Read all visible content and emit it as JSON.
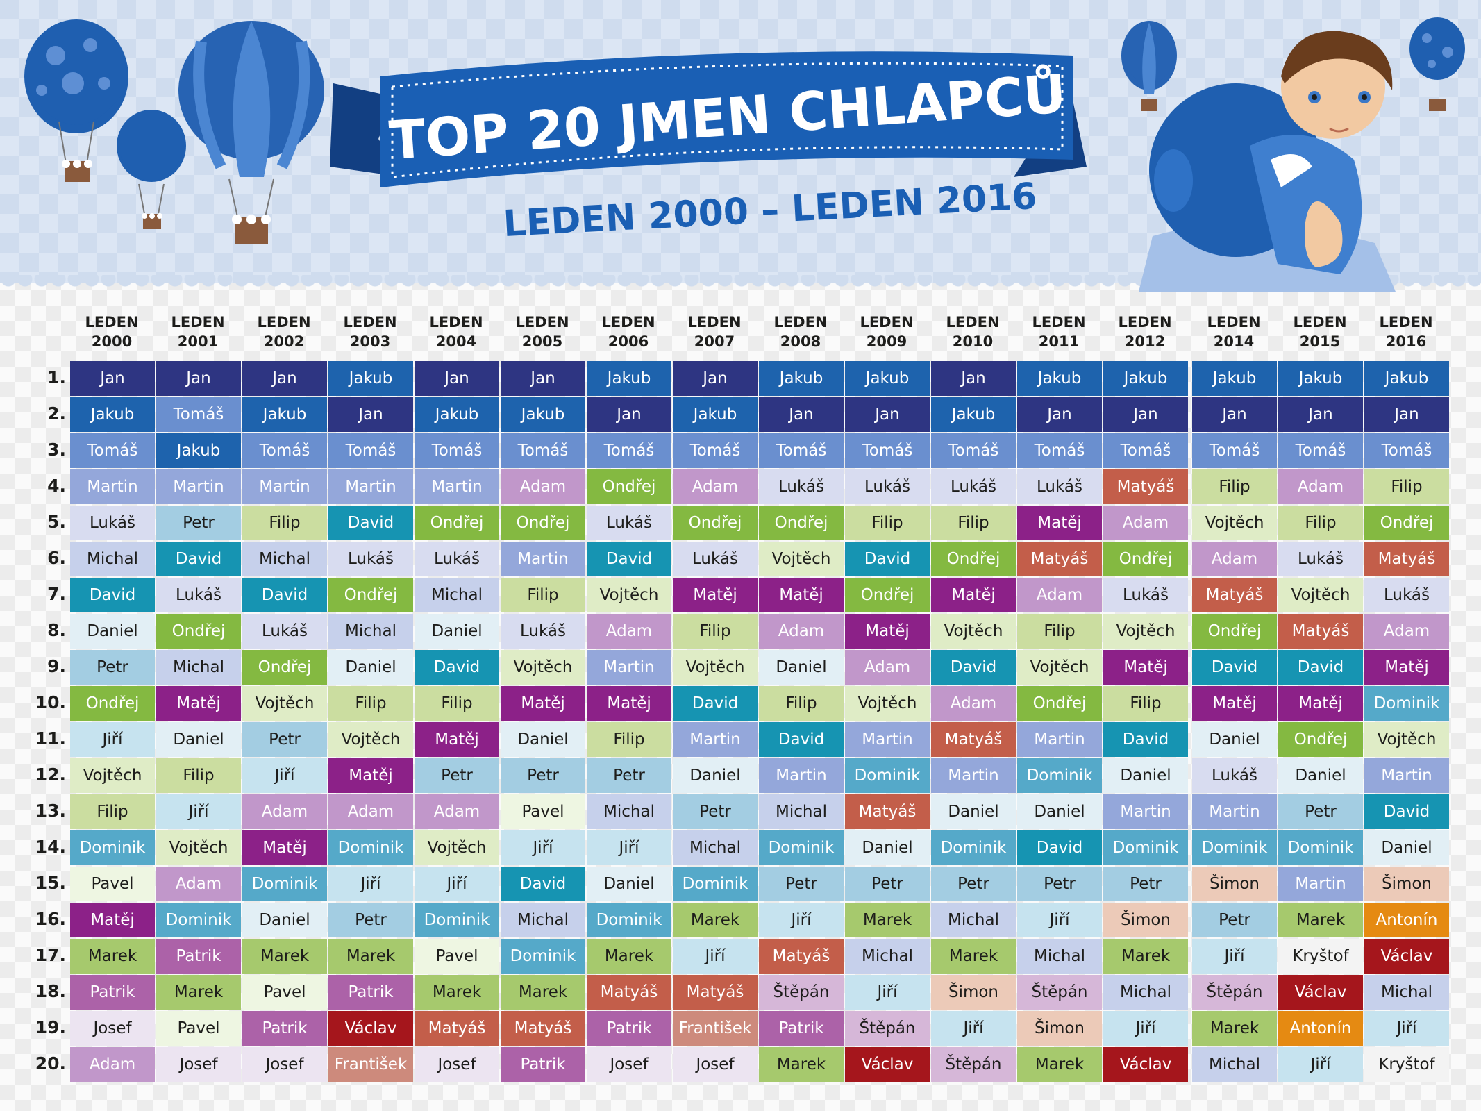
{
  "header": {
    "title": "TOP 20 JMEN CHLAPCŮ",
    "subtitle": "LEDEN 2000 – LEDEN 2016"
  },
  "columns": [
    {
      "line1": "LEDEN",
      "line2": "2000"
    },
    {
      "line1": "LEDEN",
      "line2": "2001"
    },
    {
      "line1": "LEDEN",
      "line2": "2002"
    },
    {
      "line1": "LEDEN",
      "line2": "2003"
    },
    {
      "line1": "LEDEN",
      "line2": "2004"
    },
    {
      "line1": "LEDEN",
      "line2": "2005"
    },
    {
      "line1": "LEDEN",
      "line2": "2006"
    },
    {
      "line1": "LEDEN",
      "line2": "2007"
    },
    {
      "line1": "LEDEN",
      "line2": "2008"
    },
    {
      "line1": "LEDEN",
      "line2": "2009"
    },
    {
      "line1": "LEDEN",
      "line2": "2010"
    },
    {
      "line1": "LEDEN",
      "line2": "2011"
    },
    {
      "line1": "LEDEN",
      "line2": "2012"
    },
    {
      "line1": "LEDEN",
      "line2": "2014"
    },
    {
      "line1": "LEDEN",
      "line2": "2015"
    },
    {
      "line1": "LEDEN",
      "line2": "2016"
    }
  ],
  "ranks": [
    "1.",
    "2.",
    "3.",
    "4.",
    "5.",
    "6.",
    "7.",
    "8.",
    "9.",
    "10.",
    "11.",
    "12.",
    "13.",
    "14.",
    "15.",
    "16.",
    "17.",
    "18.",
    "19.",
    "20."
  ],
  "grid": [
    [
      "Jan",
      "Jan",
      "Jan",
      "Jakub",
      "Jan",
      "Jan",
      "Jakub",
      "Jan",
      "Jakub",
      "Jakub",
      "Jan",
      "Jakub",
      "Jakub",
      "Jakub",
      "Jakub",
      "Jakub"
    ],
    [
      "Jakub",
      "Tomáš",
      "Jakub",
      "Jan",
      "Jakub",
      "Jakub",
      "Jan",
      "Jakub",
      "Jan",
      "Jan",
      "Jakub",
      "Jan",
      "Jan",
      "Jan",
      "Jan",
      "Jan"
    ],
    [
      "Tomáš",
      "Jakub",
      "Tomáš",
      "Tomáš",
      "Tomáš",
      "Tomáš",
      "Tomáš",
      "Tomáš",
      "Tomáš",
      "Tomáš",
      "Tomáš",
      "Tomáš",
      "Tomáš",
      "Tomáš",
      "Tomáš",
      "Tomáš"
    ],
    [
      "Martin",
      "Martin",
      "Martin",
      "Martin",
      "Martin",
      "Adam",
      "Ondřej",
      "Adam",
      "Lukáš",
      "Lukáš",
      "Lukáš",
      "Lukáš",
      "Matyáš",
      "Filip",
      "Adam",
      "Filip"
    ],
    [
      "Lukáš",
      "Petr",
      "Filip",
      "David",
      "Ondřej",
      "Ondřej",
      "Lukáš",
      "Ondřej",
      "Ondřej",
      "Filip",
      "Filip",
      "Matěj",
      "Adam",
      "Vojtěch",
      "Filip",
      "Ondřej"
    ],
    [
      "Michal",
      "David",
      "Michal",
      "Lukáš",
      "Lukáš",
      "Martin",
      "David",
      "Lukáš",
      "Vojtěch",
      "David",
      "Ondřej",
      "Matyáš",
      "Ondřej",
      "Adam",
      "Lukáš",
      "Matyáš"
    ],
    [
      "David",
      "Lukáš",
      "David",
      "Ondřej",
      "Michal",
      "Filip",
      "Vojtěch",
      "Matěj",
      "Matěj",
      "Ondřej",
      "Matěj",
      "Adam",
      "Lukáš",
      "Matyáš",
      "Vojtěch",
      "Lukáš"
    ],
    [
      "Daniel",
      "Ondřej",
      "Lukáš",
      "Michal",
      "Daniel",
      "Lukáš",
      "Adam",
      "Filip",
      "Adam",
      "Matěj",
      "Vojtěch",
      "Filip",
      "Vojtěch",
      "Ondřej",
      "Matyáš",
      "Adam"
    ],
    [
      "Petr",
      "Michal",
      "Ondřej",
      "Daniel",
      "David",
      "Vojtěch",
      "Martin",
      "Vojtěch",
      "Daniel",
      "Adam",
      "David",
      "Vojtěch",
      "Matěj",
      "David",
      "David",
      "Matěj"
    ],
    [
      "Ondřej",
      "Matěj",
      "Vojtěch",
      "Filip",
      "Filip",
      "Matěj",
      "Matěj",
      "David",
      "Filip",
      "Vojtěch",
      "Adam",
      "Ondřej",
      "Filip",
      "Matěj",
      "Matěj",
      "Dominik"
    ],
    [
      "Jiří",
      "Daniel",
      "Petr",
      "Vojtěch",
      "Matěj",
      "Daniel",
      "Filip",
      "Martin",
      "David",
      "Martin",
      "Matyáš",
      "Martin",
      "David",
      "Daniel",
      "Ondřej",
      "Vojtěch"
    ],
    [
      "Vojtěch",
      "Filip",
      "Jiří",
      "Matěj",
      "Petr",
      "Petr",
      "Petr",
      "Daniel",
      "Martin",
      "Dominik",
      "Martin",
      "Dominik",
      "Daniel",
      "Lukáš",
      "Daniel",
      "Martin"
    ],
    [
      "Filip",
      "Jiří",
      "Adam",
      "Adam",
      "Adam",
      "Pavel",
      "Michal",
      "Petr",
      "Michal",
      "Matyáš",
      "Daniel",
      "Daniel",
      "Martin",
      "Martin",
      "Petr",
      "David"
    ],
    [
      "Dominik",
      "Vojtěch",
      "Matěj",
      "Dominik",
      "Vojtěch",
      "Jiří",
      "Jiří",
      "Michal",
      "Dominik",
      "Daniel",
      "Dominik",
      "David",
      "Dominik",
      "Dominik",
      "Dominik",
      "Daniel"
    ],
    [
      "Pavel",
      "Adam",
      "Dominik",
      "Jiří",
      "Jiří",
      "David",
      "Daniel",
      "Dominik",
      "Petr",
      "Petr",
      "Petr",
      "Petr",
      "Petr",
      "Šimon",
      "Martin",
      "Šimon"
    ],
    [
      "Matěj",
      "Dominik",
      "Daniel",
      "Petr",
      "Dominik",
      "Michal",
      "Dominik",
      "Marek",
      "Jiří",
      "Marek",
      "Michal",
      "Jiří",
      "Šimon",
      "Petr",
      "Marek",
      "Antonín"
    ],
    [
      "Marek",
      "Patrik",
      "Marek",
      "Marek",
      "Pavel",
      "Dominik",
      "Marek",
      "Jiří",
      "Matyáš",
      "Michal",
      "Marek",
      "Michal",
      "Marek",
      "Jiří",
      "Kryštof",
      "Václav"
    ],
    [
      "Patrik",
      "Marek",
      "Pavel",
      "Patrik",
      "Marek",
      "Marek",
      "Matyáš",
      "Matyáš",
      "Štěpán",
      "Jiří",
      "Šimon",
      "Štěpán",
      "Michal",
      "Štěpán",
      "Václav",
      "Michal"
    ],
    [
      "Josef",
      "Pavel",
      "Patrik",
      "Václav",
      "Matyáš",
      "Matyáš",
      "Patrik",
      "František",
      "Patrik",
      "Štěpán",
      "Jiří",
      "Šimon",
      "Jiří",
      "Marek",
      "Antonín",
      "Jiří"
    ],
    [
      "Adam",
      "Josef",
      "Josef",
      "František",
      "Josef",
      "Patrik",
      "Josef",
      "Josef",
      "Marek",
      "Václav",
      "Štěpán",
      "Marek",
      "Václav",
      "Michal",
      "Jiří",
      "Kryštof"
    ]
  ],
  "name_colors": {
    "Jan": {
      "bg": "#2e3582",
      "fg": "#ffffff"
    },
    "Jakub": {
      "bg": "#1e63ad",
      "fg": "#ffffff"
    },
    "Tomáš": {
      "bg": "#6a8fcf",
      "fg": "#ffffff"
    },
    "Martin": {
      "bg": "#94a7da",
      "fg": "#ffffff"
    },
    "Lukáš": {
      "bg": "#d8dcf0",
      "fg": "#1d1d1b"
    },
    "Petr": {
      "bg": "#a3cde2",
      "fg": "#1d1d1b"
    },
    "Filip": {
      "bg": "#cbdda0",
      "fg": "#1d1d1b"
    },
    "David": {
      "bg": "#1694b2",
      "fg": "#ffffff"
    },
    "Ondřej": {
      "bg": "#84b941",
      "fg": "#ffffff"
    },
    "Adam": {
      "bg": "#c197ca",
      "fg": "#ffffff"
    },
    "Michal": {
      "bg": "#c6d0eb",
      "fg": "#1d1d1b"
    },
    "Vojtěch": {
      "bg": "#dfecc6",
      "fg": "#1d1d1b"
    },
    "Matěj": {
      "bg": "#8c2188",
      "fg": "#ffffff"
    },
    "Matyáš": {
      "bg": "#c35e4a",
      "fg": "#ffffff"
    },
    "Daniel": {
      "bg": "#e2eff5",
      "fg": "#1d1d1b"
    },
    "Jiří": {
      "bg": "#c6e3ef",
      "fg": "#1d1d1b"
    },
    "Dominik": {
      "bg": "#55a9c9",
      "fg": "#ffffff"
    },
    "Pavel": {
      "bg": "#eef6e2",
      "fg": "#1d1d1b"
    },
    "Marek": {
      "bg": "#a6c96d",
      "fg": "#1d1d1b"
    },
    "Patrik": {
      "bg": "#ac62a8",
      "fg": "#ffffff"
    },
    "Josef": {
      "bg": "#ece4f1",
      "fg": "#1d1d1b"
    },
    "Václav": {
      "bg": "#a5161c",
      "fg": "#ffffff"
    },
    "František": {
      "bg": "#cd8a7c",
      "fg": "#ffffff"
    },
    "Štěpán": {
      "bg": "#d6b7d8",
      "fg": "#1d1d1b"
    },
    "Šimon": {
      "bg": "#eccab8",
      "fg": "#1d1d1b"
    },
    "Antonín": {
      "bg": "#e58a12",
      "fg": "#ffffff"
    },
    "Kryštof": {
      "bg": "#f3f3f3",
      "fg": "#1d1d1b"
    }
  },
  "colors": {
    "header_bg": "#cfdcee",
    "ribbon": "#1a5fb4",
    "ribbon_dark": "#123f82",
    "subtitle": "#1a5fb4"
  }
}
